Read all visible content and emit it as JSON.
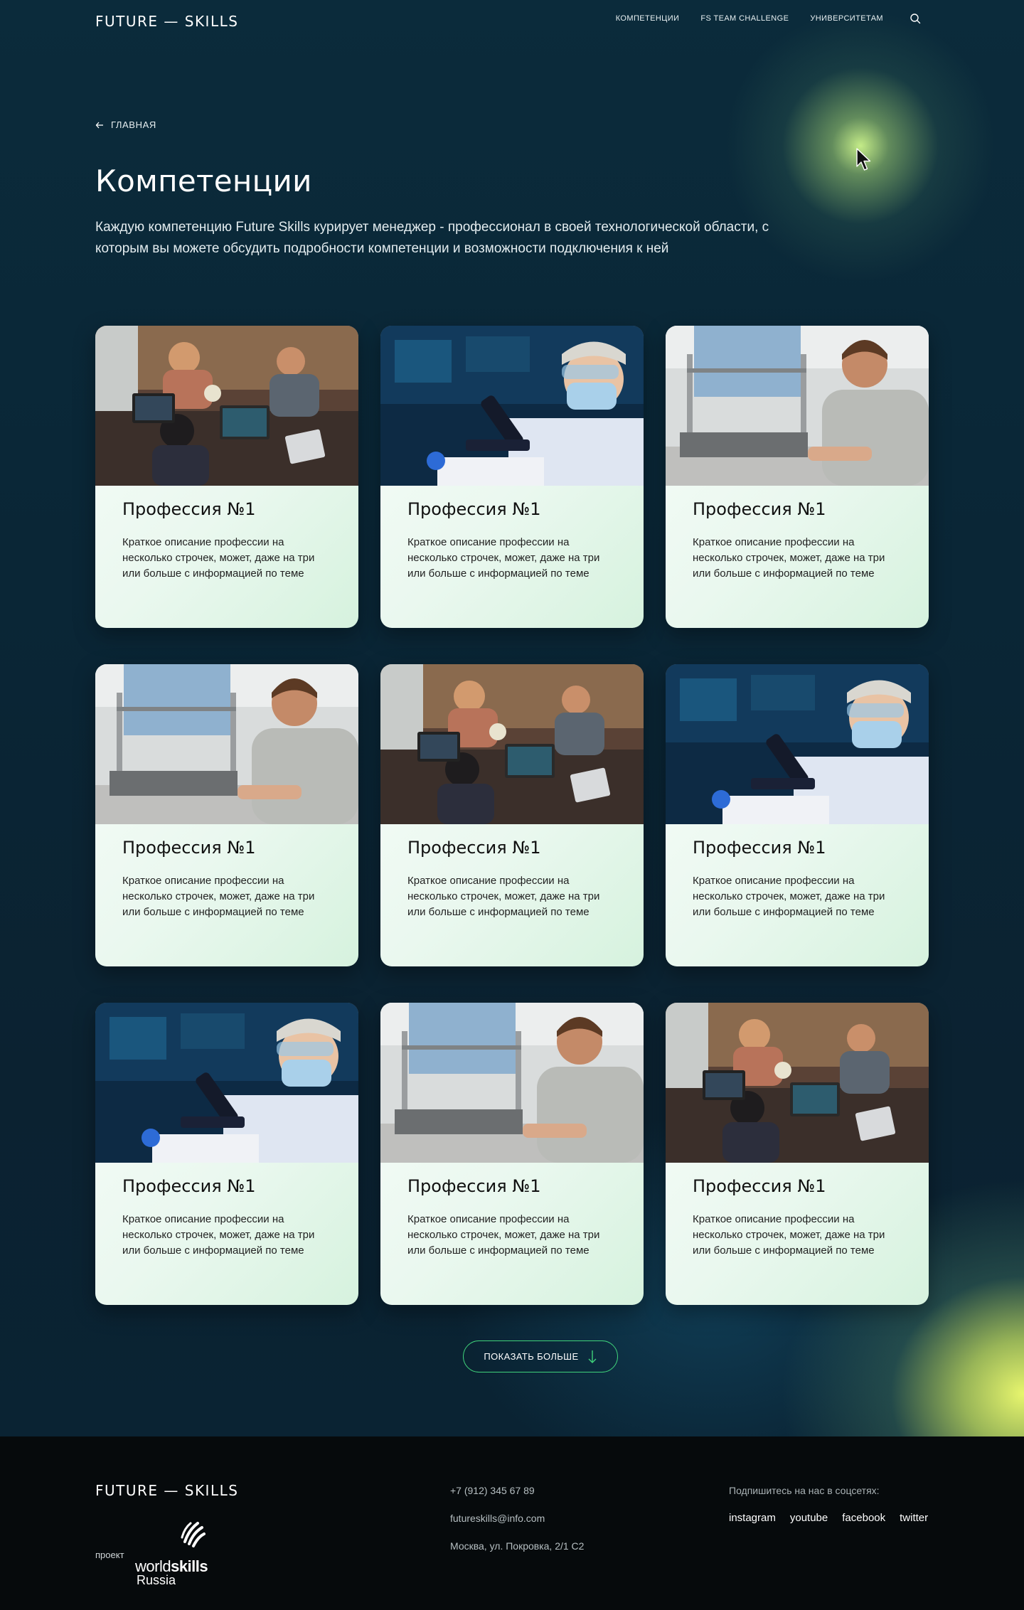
{
  "header": {
    "logo": "FUTURE — SKILLS",
    "nav": [
      "КОМПЕТЕНЦИИ",
      "FS TEAM CHALLENGE",
      "УНИВЕРСИТЕТАМ"
    ]
  },
  "breadcrumb": {
    "label": "ГЛАВНАЯ"
  },
  "page": {
    "title": "Компетенции",
    "description": "Каждую компетенцию Future Skills курирует менеджер - профессионал в своей технологической области, с которым вы можете обсудить подробности компетенции и возможности подключения к ней"
  },
  "cards": [
    {
      "title": "Профессия №1",
      "text": "Краткое описание профессии на несколько строчек, может, даже на три или больше с информацией по теме",
      "image": "team-laptops"
    },
    {
      "title": "Профессия №1",
      "text": "Краткое описание профессии на несколько строчек, может, даже на три или больше с информацией по теме",
      "image": "lab-microscope"
    },
    {
      "title": "Профессия №1",
      "text": "Краткое описание профессии на несколько строчек, может, даже на три или больше с информацией по теме",
      "image": "engineer-3d-printer"
    },
    {
      "title": "Профессия №1",
      "text": "Краткое описание профессии на несколько строчек, может, даже на три или больше с информацией по теме",
      "image": "engineer-3d-printer"
    },
    {
      "title": "Профессия №1",
      "text": "Краткое описание профессии на несколько строчек, может, даже на три или больше с информацией по теме",
      "image": "team-laptops"
    },
    {
      "title": "Профессия №1",
      "text": "Краткое описание профессии на несколько строчек, может, даже на три или больше с информацией по теме",
      "image": "lab-microscope"
    },
    {
      "title": "Профессия №1",
      "text": "Краткое описание профессии на несколько строчек, может, даже на три или больше с информацией по теме",
      "image": "lab-microscope"
    },
    {
      "title": "Профессия №1",
      "text": "Краткое описание профессии на несколько строчек, может, даже на три или больше с информацией по теме",
      "image": "engineer-3d-printer"
    },
    {
      "title": "Профессия №1",
      "text": "Краткое описание профессии на несколько строчек, может, даже на три или больше с информацией по теме",
      "image": "team-laptops"
    }
  ],
  "show_more": {
    "label": "ПОКАЗАТЬ БОЛЬШЕ"
  },
  "footer": {
    "logo": "FUTURE — SKILLS",
    "project_label": "проект",
    "partner_logo": {
      "word1": "world",
      "word2": "skills",
      "word3": "Russia"
    },
    "phone": "+7 (912) 345 67 89",
    "email": "futureskills@info.com",
    "address": "Москва, ул. Покровка, 2/1 С2",
    "social_label": "Подпишитесь на нас в соцсетях:",
    "social_links": [
      "instagram",
      "youtube",
      "facebook",
      "twitter"
    ]
  },
  "colors": {
    "background": "#0a2636",
    "accent_green": "#3fd27a",
    "card_bg": "#eaf8ef",
    "footer_bg": "#060a0c"
  }
}
